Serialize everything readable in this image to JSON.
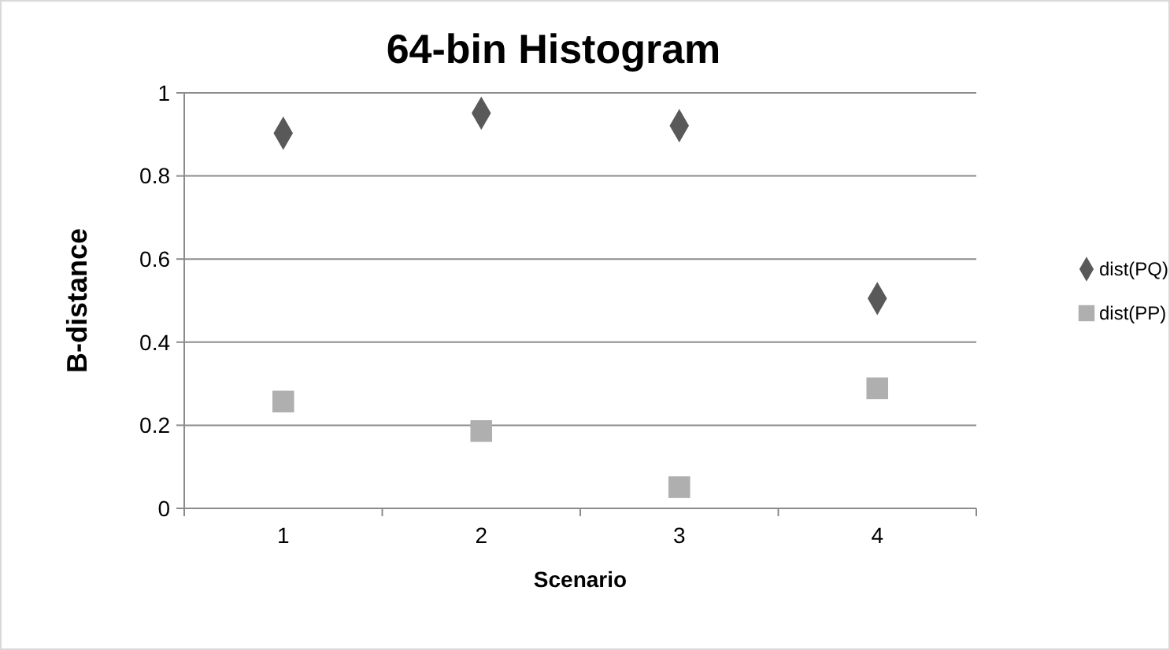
{
  "chart_data": {
    "type": "scatter",
    "title": "64-bin Histogram",
    "xlabel": "Scenario",
    "ylabel": "B-distance",
    "categories": [
      "1",
      "2",
      "3",
      "4"
    ],
    "series": [
      {
        "name": "dist(PQ)",
        "color": "#595959",
        "marker": "diamond",
        "values": [
          0.903,
          0.951,
          0.921,
          0.505
        ]
      },
      {
        "name": "dist(PP)",
        "color": "#afafaf",
        "marker": "square",
        "values": [
          0.257,
          0.186,
          0.051,
          0.289
        ]
      }
    ],
    "ylim": [
      0,
      1
    ],
    "yticks": [
      0,
      0.2,
      0.4,
      0.6,
      0.8,
      1
    ],
    "grid": "y",
    "legend": "right"
  }
}
